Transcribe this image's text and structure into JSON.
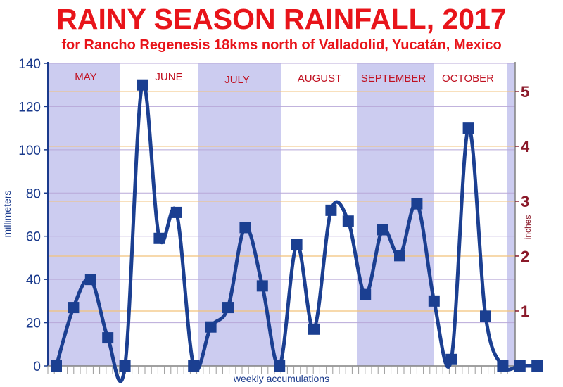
{
  "chart_data": {
    "type": "line",
    "title": "RAINY SEASON RAINFALL, 2017",
    "subtitle": "for Rancho Regenesis 18kms north of Valladolid, Yucatán, Mexico",
    "ylabel": "millimeters",
    "y2label": "inches",
    "xlabel": "weekly accumulations",
    "ylim": [
      0,
      140
    ],
    "yticks": [
      0,
      20,
      40,
      60,
      80,
      100,
      120,
      140
    ],
    "y2ticks": [
      "1",
      "2",
      "3",
      "4",
      "5"
    ],
    "y2unit_mm": 25.4,
    "grid": true,
    "months": [
      "MAY",
      "JUNE",
      "JULY",
      "AUGUST",
      "SEPTEMBER",
      "OCTOBER"
    ],
    "x": [
      1,
      2,
      3,
      4,
      5,
      6,
      7,
      8,
      9,
      10,
      11,
      12,
      13,
      14,
      15,
      16,
      17,
      18,
      19,
      20,
      21,
      22,
      23,
      24,
      25,
      26,
      27,
      28,
      29
    ],
    "series": [
      {
        "values": [
          0,
          27,
          40,
          13,
          0,
          130,
          59,
          71,
          0,
          18,
          27,
          64,
          37,
          0,
          56,
          17,
          72,
          67,
          33,
          63,
          51,
          75,
          30,
          3,
          110,
          23,
          0,
          0,
          0
        ],
        "color": "#1b3f91"
      }
    ],
    "colors": {
      "band": "#ccccf0",
      "hgrid": "#b8a8d8",
      "inch_lines": "#f2c27a",
      "axis_left": "#1a3a8c",
      "axis_right": "#8b1a2a",
      "month_labels": "#c01020",
      "title": "#e8141a"
    }
  }
}
